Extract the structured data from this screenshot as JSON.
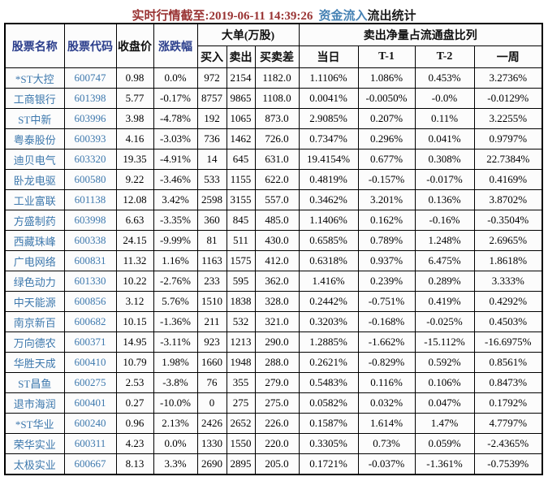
{
  "title": {
    "prefix": "实时行情截至:2019-06-11 14:39:26",
    "highlight": "资金流入",
    "suffix": "流出统计"
  },
  "colors": {
    "title_prefix": "#993333",
    "title_highlight": "#4682B4",
    "title_suffix": "#1a1a1a",
    "header_navy": "#2B3E8C",
    "header_black": "#101010",
    "stock_blue": "#3D78AD",
    "border": "#000000",
    "cell_background": "#fcfcfc"
  },
  "table": {
    "header": {
      "stock_name": "股票名称",
      "stock_code": "股票代码",
      "close_price": "收盘价",
      "change_pct": "涨跌幅",
      "big_orders_group": "大单(万股)",
      "buy": "买入",
      "sell": "卖出",
      "buy_sell_diff": "买卖差",
      "net_sell_group": "卖出净量占流通盘比列",
      "day": "当日",
      "t1": "T-1",
      "t2": "T-2",
      "week": "一周"
    },
    "column_keys": [
      "name",
      "code",
      "close",
      "change",
      "buy",
      "sell",
      "diff",
      "day",
      "t1",
      "t2",
      "week"
    ],
    "rows": [
      {
        "name": "*ST大控",
        "code": "600747",
        "close": "0.98",
        "change": "0.0%",
        "buy": "972",
        "sell": "2154",
        "diff": "1182.0",
        "day": "1.1106%",
        "t1": "1.086%",
        "t2": "0.453%",
        "week": "3.2736%"
      },
      {
        "name": "工商银行",
        "code": "601398",
        "close": "5.77",
        "change": "-0.17%",
        "buy": "8757",
        "sell": "9865",
        "diff": "1108.0",
        "day": "0.0041%",
        "t1": "-0.0050%",
        "t2": "-0.0%",
        "week": "-0.0129%"
      },
      {
        "name": "ST中新",
        "code": "603996",
        "close": "3.98",
        "change": "-4.78%",
        "buy": "192",
        "sell": "1065",
        "diff": "873.0",
        "day": "2.9085%",
        "t1": "0.207%",
        "t2": "0.11%",
        "week": "3.2255%"
      },
      {
        "name": "粤泰股份",
        "code": "600393",
        "close": "4.16",
        "change": "-3.03%",
        "buy": "736",
        "sell": "1462",
        "diff": "726.0",
        "day": "0.7347%",
        "t1": "0.296%",
        "t2": "0.041%",
        "week": "0.9797%"
      },
      {
        "name": "迪贝电气",
        "code": "603320",
        "close": "19.35",
        "change": "-4.91%",
        "buy": "14",
        "sell": "645",
        "diff": "631.0",
        "day": "19.4154%",
        "t1": "0.677%",
        "t2": "0.308%",
        "week": "22.7384%"
      },
      {
        "name": "卧龙电驱",
        "code": "600580",
        "close": "9.22",
        "change": "-3.46%",
        "buy": "533",
        "sell": "1155",
        "diff": "622.0",
        "day": "0.4819%",
        "t1": "-0.157%",
        "t2": "-0.017%",
        "week": "0.4169%"
      },
      {
        "name": "工业富联",
        "code": "601138",
        "close": "12.08",
        "change": "3.42%",
        "buy": "2598",
        "sell": "3155",
        "diff": "557.0",
        "day": "0.3462%",
        "t1": "3.201%",
        "t2": "0.136%",
        "week": "3.8702%"
      },
      {
        "name": "方盛制药",
        "code": "603998",
        "close": "6.63",
        "change": "-3.35%",
        "buy": "360",
        "sell": "845",
        "diff": "485.0",
        "day": "1.1406%",
        "t1": "0.162%",
        "t2": "-0.16%",
        "week": "-0.3504%"
      },
      {
        "name": "西藏珠峰",
        "code": "600338",
        "close": "24.15",
        "change": "-9.99%",
        "buy": "81",
        "sell": "511",
        "diff": "430.0",
        "day": "0.6585%",
        "t1": "0.789%",
        "t2": "1.248%",
        "week": "2.6965%"
      },
      {
        "name": "广电网络",
        "code": "600831",
        "close": "11.32",
        "change": "1.16%",
        "buy": "1163",
        "sell": "1575",
        "diff": "412.0",
        "day": "0.6318%",
        "t1": "0.937%",
        "t2": "6.475%",
        "week": "1.8618%"
      },
      {
        "name": "绿色动力",
        "code": "601330",
        "close": "10.22",
        "change": "-2.76%",
        "buy": "233",
        "sell": "595",
        "diff": "362.0",
        "day": "1.416%",
        "t1": "0.239%",
        "t2": "0.289%",
        "week": "3.333%"
      },
      {
        "name": "中天能源",
        "code": "600856",
        "close": "3.12",
        "change": "5.76%",
        "buy": "1510",
        "sell": "1838",
        "diff": "328.0",
        "day": "0.2442%",
        "t1": "-0.751%",
        "t2": "0.419%",
        "week": "0.4292%"
      },
      {
        "name": "南京新百",
        "code": "600682",
        "close": "10.15",
        "change": "-1.36%",
        "buy": "211",
        "sell": "532",
        "diff": "321.0",
        "day": "0.3203%",
        "t1": "-0.168%",
        "t2": "-0.025%",
        "week": "0.4503%"
      },
      {
        "name": "万向德农",
        "code": "600371",
        "close": "14.95",
        "change": "-3.11%",
        "buy": "923",
        "sell": "1213",
        "diff": "290.0",
        "day": "1.2885%",
        "t1": "-1.662%",
        "t2": "-15.112%",
        "week": "-16.6975%"
      },
      {
        "name": "华胜天成",
        "code": "600410",
        "close": "10.79",
        "change": "1.98%",
        "buy": "1660",
        "sell": "1948",
        "diff": "288.0",
        "day": "0.2621%",
        "t1": "-0.829%",
        "t2": "0.592%",
        "week": "0.8561%"
      },
      {
        "name": "ST昌鱼",
        "code": "600275",
        "close": "2.53",
        "change": "-3.8%",
        "buy": "76",
        "sell": "355",
        "diff": "279.0",
        "day": "0.5483%",
        "t1": "0.116%",
        "t2": "0.106%",
        "week": "0.8473%"
      },
      {
        "name": "退市海润",
        "code": "600401",
        "close": "0.27",
        "change": "-10.0%",
        "buy": "0",
        "sell": "275",
        "diff": "275.0",
        "day": "0.0582%",
        "t1": "0.032%",
        "t2": "0.047%",
        "week": "0.1792%"
      },
      {
        "name": "*ST华业",
        "code": "600240",
        "close": "0.96",
        "change": "2.13%",
        "buy": "2426",
        "sell": "2652",
        "diff": "226.0",
        "day": "0.1587%",
        "t1": "1.614%",
        "t2": "1.47%",
        "week": "4.7797%"
      },
      {
        "name": "荣华实业",
        "code": "600311",
        "close": "4.23",
        "change": "0.0%",
        "buy": "1330",
        "sell": "1550",
        "diff": "220.0",
        "day": "0.3305%",
        "t1": "0.73%",
        "t2": "0.059%",
        "week": "-2.4365%"
      },
      {
        "name": "太极实业",
        "code": "600667",
        "close": "8.13",
        "change": "3.3%",
        "buy": "2690",
        "sell": "2895",
        "diff": "205.0",
        "day": "0.1721%",
        "t1": "-0.037%",
        "t2": "-1.361%",
        "week": "-0.7539%"
      }
    ]
  }
}
